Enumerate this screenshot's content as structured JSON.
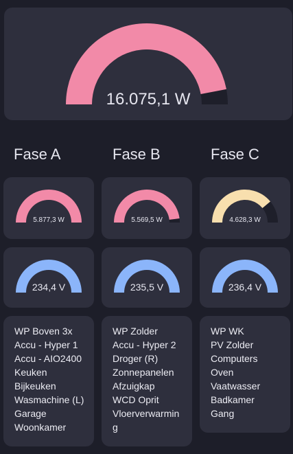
{
  "colors": {
    "power": "#f28aa8",
    "power_low": "#f8dfae",
    "voltage": "#8bb5fa",
    "track": "#1e1f2a",
    "card": "#2e2f3d",
    "background": "#1d1e29"
  },
  "total": {
    "label": "16.075,1 W",
    "fraction": 0.94
  },
  "phases": [
    {
      "title": "Fase A",
      "power": {
        "label": "5.877,3 W",
        "fraction": 1.0,
        "color": "#f28aa8"
      },
      "voltage": {
        "label": "234,4 V",
        "fraction": 1.0
      },
      "items": [
        "WP Boven 3x",
        "Accu - Hyper 1",
        "Accu - AIO2400",
        "Keuken",
        "Bijkeuken",
        "Wasmachine (L)",
        "Garage",
        "Woonkamer"
      ]
    },
    {
      "title": "Fase B",
      "power": {
        "label": "5.569,5 W",
        "fraction": 0.96,
        "color": "#f28aa8"
      },
      "voltage": {
        "label": "235,5 V",
        "fraction": 1.0
      },
      "items": [
        "WP Zolder",
        "Accu - Hyper 2",
        "Droger (R)",
        "Zonnepanelen",
        "Afzuigkap",
        "WCD Oprit",
        "Vloerverwarmin",
        "g"
      ]
    },
    {
      "title": "Fase C",
      "power": {
        "label": "4.628,3 W",
        "fraction": 0.78,
        "color": "#f8dfae"
      },
      "voltage": {
        "label": "236,4 V",
        "fraction": 1.0
      },
      "items": [
        "WP WK",
        "PV Zolder",
        "Computers",
        "Oven",
        "Vaatwasser",
        "Badkamer",
        "Gang"
      ]
    }
  ]
}
